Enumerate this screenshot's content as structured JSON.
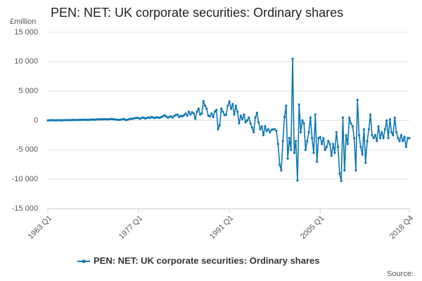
{
  "chart_data": {
    "type": "line",
    "title": "PEN: NET: UK corporate securities: Ordinary shares",
    "y_axis_label": "£million",
    "source": "Source:",
    "categories": [
      "1963 Q1",
      null,
      null,
      null,
      null,
      null,
      null,
      null,
      null,
      null,
      null,
      null,
      null,
      null,
      null,
      null,
      null,
      null,
      null,
      null,
      null,
      null,
      null,
      null,
      null,
      null,
      null,
      null,
      null,
      null,
      null,
      null,
      null,
      null,
      null,
      null,
      null,
      null,
      null,
      null,
      null,
      null,
      null,
      null,
      null,
      null,
      null,
      null,
      null,
      null,
      null,
      null,
      null,
      null,
      null,
      null,
      "1977 Q1",
      null,
      null,
      null,
      null,
      null,
      null,
      null,
      null,
      null,
      null,
      null,
      null,
      null,
      null,
      null,
      null,
      null,
      null,
      null,
      null,
      null,
      null,
      null,
      null,
      null,
      null,
      null,
      null,
      null,
      null,
      null,
      null,
      null,
      null,
      null,
      null,
      null,
      null,
      null,
      null,
      null,
      null,
      null,
      null,
      null,
      null,
      null,
      null,
      null,
      null,
      null,
      null,
      null,
      null,
      null,
      "1991 Q1",
      null,
      null,
      null,
      null,
      null,
      null,
      null,
      null,
      null,
      null,
      null,
      null,
      null,
      null,
      null,
      null,
      null,
      null,
      null,
      null,
      null,
      null,
      null,
      null,
      null,
      null,
      null,
      null,
      null,
      null,
      null,
      null,
      null,
      null,
      null,
      null,
      null,
      null,
      null,
      null,
      null,
      null,
      null,
      null,
      null,
      null,
      null,
      null,
      null,
      null,
      null,
      null,
      null,
      null,
      null,
      "2005 Q1",
      null,
      null,
      null,
      null,
      null,
      null,
      null,
      null,
      null,
      null,
      null,
      null,
      null,
      null,
      null,
      null,
      null,
      null,
      null,
      null,
      null,
      null,
      null,
      null,
      null,
      null,
      null,
      null,
      null,
      null,
      null,
      null,
      null,
      null,
      null,
      null,
      null,
      null,
      null,
      null,
      null,
      null,
      null,
      null,
      null,
      null,
      null,
      null,
      null,
      null,
      null,
      null,
      null,
      null,
      "2018 Q4"
    ],
    "series": [
      {
        "name": "PEN: NET: UK corporate securities: Ordinary shares",
        "color": "#0e77b4",
        "values": [
          0,
          50,
          30,
          60,
          40,
          20,
          50,
          70,
          30,
          60,
          40,
          80,
          50,
          70,
          60,
          90,
          80,
          100,
          70,
          110,
          90,
          120,
          100,
          130,
          110,
          90,
          130,
          150,
          150,
          120,
          180,
          200,
          170,
          210,
          190,
          230,
          200,
          180,
          220,
          250,
          230,
          200,
          160,
          120,
          100,
          150,
          200,
          250,
          80,
          120,
          200,
          300,
          250,
          350,
          400,
          450,
          400,
          300,
          450,
          500,
          350,
          400,
          500,
          450,
          600,
          500,
          400,
          550,
          500,
          450,
          600,
          700,
          900,
          700,
          500,
          600,
          700,
          500,
          800,
          900,
          1000,
          600,
          800,
          700,
          900,
          1200,
          800,
          1500,
          1000,
          1400,
          1200,
          300,
          1500,
          2000,
          1000,
          1200,
          3300,
          2500,
          2000,
          800,
          700,
          1200,
          600,
          1500,
          1800,
          -1500,
          -800,
          2000,
          1500,
          900,
          1000,
          2500,
          3200,
          2000,
          2800,
          1000,
          2500,
          1500,
          -500,
          800,
          200,
          1000,
          -300,
          0,
          500,
          -500,
          -1200,
          -2000,
          500,
          1300,
          -300,
          -1500,
          -1000,
          -2500,
          -1000,
          -1800,
          -1500,
          -2000,
          -1600,
          -1500,
          -1500,
          -1800,
          -4000,
          -7500,
          -8500,
          -3500,
          600,
          2500,
          -6500,
          -3000,
          -5000,
          10500,
          -5500,
          -3500,
          -10200,
          2700,
          -2000,
          0,
          -500,
          -5000,
          -3500,
          -2000,
          500,
          -3000,
          -5500,
          1000,
          -7000,
          -3000,
          -2800,
          -4000,
          -3000,
          -5000,
          -4500,
          -3500,
          -4000,
          -6000,
          -4000,
          -5500,
          -2000,
          -4500,
          -9000,
          -10300,
          500,
          -8500,
          -2500,
          -4000,
          500,
          -500,
          -1000,
          -3000,
          -8500,
          3500,
          -2500,
          -4500,
          -5800,
          -1500,
          -7200,
          -3500,
          -1500,
          1000,
          -2500,
          -3000,
          -2500,
          -3500,
          -1000,
          -3000,
          -2000,
          -3000,
          -1500,
          0,
          -3000,
          200,
          -2000,
          -2500,
          500,
          -2000,
          -3000,
          -3500,
          -2500,
          -3500,
          -2800,
          -4500,
          -3000,
          -3000
        ]
      }
    ],
    "ylim": [
      -15000,
      15000
    ],
    "yticks": [
      {
        "value": -15000,
        "label": "-15 000"
      },
      {
        "value": -10000,
        "label": "-10 000"
      },
      {
        "value": -5000,
        "label": "-5 000"
      },
      0,
      {
        "value": 5000,
        "label": "5 000"
      },
      {
        "value": 10000,
        "label": "10 000"
      },
      {
        "value": 15000,
        "label": "15 000"
      }
    ],
    "grid": true,
    "legend": "bottom"
  }
}
